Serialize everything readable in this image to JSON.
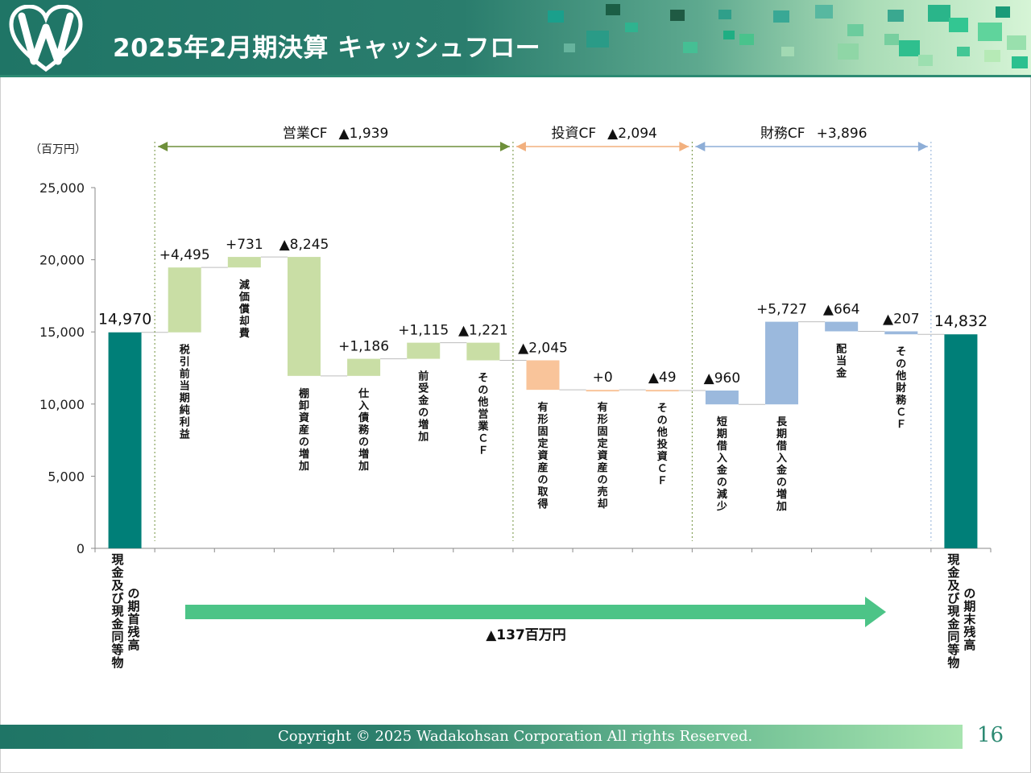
{
  "slide": {
    "title": "2025年2月期決算  キャッシュフロー",
    "footer": "Copyright © 2025  Wadakohsan Corporation All rights Reserved.",
    "page_number": "16",
    "logo_icon": "w-heart-logo-icon",
    "accent_color": "#1f7566"
  },
  "chart_data": {
    "type": "waterfall",
    "unit_label": "（百万円）",
    "ylim": [
      0,
      25000
    ],
    "y_ticks": [
      0,
      5000,
      10000,
      15000,
      20000,
      25000
    ],
    "y_tick_labels": [
      "0",
      "5,000",
      "10,000",
      "15,000",
      "20,000",
      "25,000"
    ],
    "colors": {
      "total": "#007f78",
      "operating": "#c9dea5",
      "investing": "#f9c49a",
      "financing": "#9bb9dd"
    },
    "bars": [
      {
        "kind": "total",
        "value": 14970,
        "value_label": "14,970",
        "category": "現金及び現金同等物の期首残高",
        "col1": "現金及び現金同等物",
        "col2": "の期首残高"
      },
      {
        "kind": "operating",
        "value": 4495,
        "value_label": "+4,495",
        "category": "税引前当期純利益"
      },
      {
        "kind": "operating",
        "value": 731,
        "value_label": "+731",
        "category": "減価償却費"
      },
      {
        "kind": "operating",
        "value": -8245,
        "value_label": "▲8,245",
        "category": "棚卸資産の増加"
      },
      {
        "kind": "operating",
        "value": 1186,
        "value_label": "+1,186",
        "category": "仕入債務の増加"
      },
      {
        "kind": "operating",
        "value": 1115,
        "value_label": "+1,115",
        "category": "前受金の増加"
      },
      {
        "kind": "operating",
        "value": -1221,
        "value_label": "▲1,221",
        "category": "その他営業ＣＦ"
      },
      {
        "kind": "investing",
        "value": -2045,
        "value_label": "▲2,045",
        "category": "有形固定資産の取得"
      },
      {
        "kind": "investing",
        "value": 0,
        "value_label": "+0",
        "category": "有形固定資産の売却"
      },
      {
        "kind": "investing",
        "value": -49,
        "value_label": "▲49",
        "category": "その他投資ＣＦ"
      },
      {
        "kind": "financing",
        "value": -960,
        "value_label": "▲960",
        "category": "短期借入金の減少"
      },
      {
        "kind": "financing",
        "value": 5727,
        "value_label": "+5,727",
        "category": "長期借入金の増加"
      },
      {
        "kind": "financing",
        "value": -664,
        "value_label": "▲664",
        "category": "配当金"
      },
      {
        "kind": "financing",
        "value": -207,
        "value_label": "▲207",
        "category": "その他財務ＣＦ"
      },
      {
        "kind": "total",
        "value": 14832,
        "value_label": "14,832",
        "category": "現金及び現金同等物の期末残高",
        "col1": "現金及び現金同等物",
        "col2": "の期末残高"
      }
    ],
    "groups": [
      {
        "name": "営業CF",
        "value_label": "▲1,939",
        "from_bar": 1,
        "to_bar": 6,
        "color": "#6e8f3a"
      },
      {
        "name": "投資CF",
        "value_label": "▲2,094",
        "from_bar": 7,
        "to_bar": 9,
        "color": "#f2b07e"
      },
      {
        "name": "財務CF",
        "value_label": "+3,896",
        "from_bar": 10,
        "to_bar": 13,
        "color": "#8eaed7"
      }
    ],
    "net_change": {
      "label": "▲137百万円",
      "arrow_color": "#4cc487"
    }
  }
}
